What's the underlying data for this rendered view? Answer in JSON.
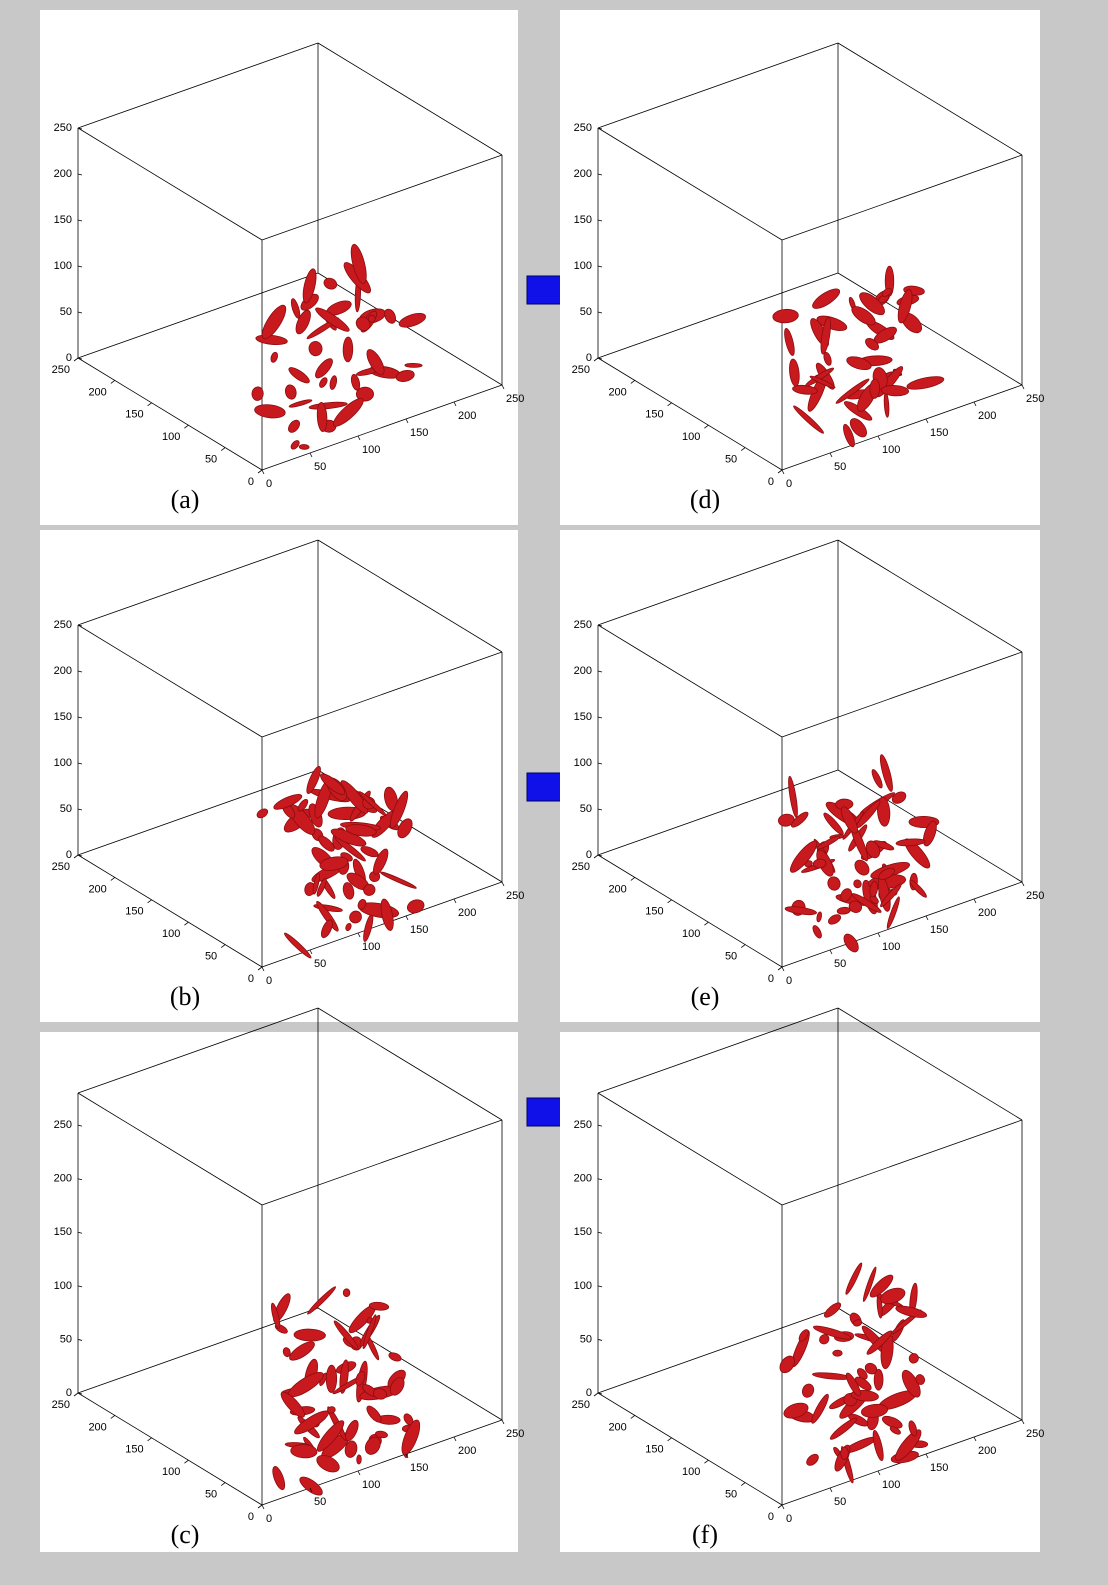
{
  "panels": [
    {
      "label": "(a)",
      "zticks": [
        0,
        50,
        100,
        150,
        200,
        250
      ],
      "yticks": [
        0,
        50,
        100,
        150,
        200,
        250
      ],
      "xticks": [
        0,
        50,
        100,
        150,
        200,
        250
      ]
    },
    {
      "label": "(b)",
      "zticks": [
        0,
        50,
        100,
        150,
        200,
        250
      ],
      "yticks": [
        0,
        50,
        100,
        150,
        200,
        250
      ],
      "xticks": [
        0,
        50,
        100,
        150,
        200,
        250
      ]
    },
    {
      "label": "(c)",
      "zticks": [
        0,
        50,
        100,
        150,
        200,
        250
      ],
      "yticks": [
        0,
        50,
        100,
        150,
        200,
        250
      ],
      "xticks": [
        0,
        50,
        100,
        150,
        200,
        250
      ]
    },
    {
      "label": "(d)",
      "zticks": [
        0,
        50,
        100,
        150,
        200,
        250
      ],
      "yticks": [
        0,
        50,
        100,
        150,
        200,
        250
      ],
      "xticks": [
        0,
        50,
        100,
        150,
        200,
        250
      ]
    },
    {
      "label": "(e)",
      "zticks": [
        0,
        50,
        100,
        150,
        200,
        250
      ],
      "yticks": [
        0,
        50,
        100,
        150,
        200,
        250
      ],
      "xticks": [
        0,
        50,
        100,
        150,
        200,
        250
      ]
    },
    {
      "label": "(f)",
      "zticks": [
        0,
        50,
        100,
        150,
        200,
        250
      ],
      "yticks": [
        0,
        50,
        100,
        150,
        200,
        250
      ],
      "xticks": [
        0,
        50,
        100,
        150,
        200,
        250
      ]
    }
  ]
}
